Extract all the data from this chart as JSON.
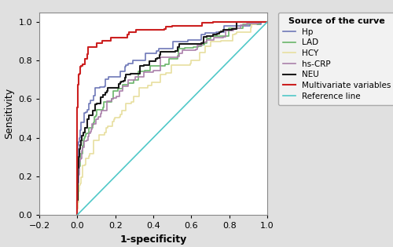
{
  "xlabel": "1-specificity",
  "ylabel": "Sensitivity",
  "xlim": [
    -0.2,
    1.0
  ],
  "ylim": [
    0.0,
    1.05
  ],
  "xticks": [
    -0.2,
    0.0,
    0.2,
    0.4,
    0.6,
    0.8,
    1.0
  ],
  "yticks": [
    0.0,
    0.2,
    0.4,
    0.6,
    0.8,
    1.0
  ],
  "legend_title": "Source of the curve",
  "legend_entries": [
    "Hp",
    "LAD",
    "HCY",
    "hs-CRP",
    "NEU",
    "Multivariate variables",
    "Reference line"
  ],
  "colors": {
    "Hp": "#6e78b8",
    "LAD": "#6ab56a",
    "HCY": "#e8dfa0",
    "hs-CRP": "#aa80aa",
    "NEU": "#1a1a1a",
    "Multivariate": "#cc2020",
    "Reference": "#50c8c8"
  },
  "figure_bg": "#e0e0e0",
  "axes_bg": "#ffffff",
  "spine_color": "#888888"
}
